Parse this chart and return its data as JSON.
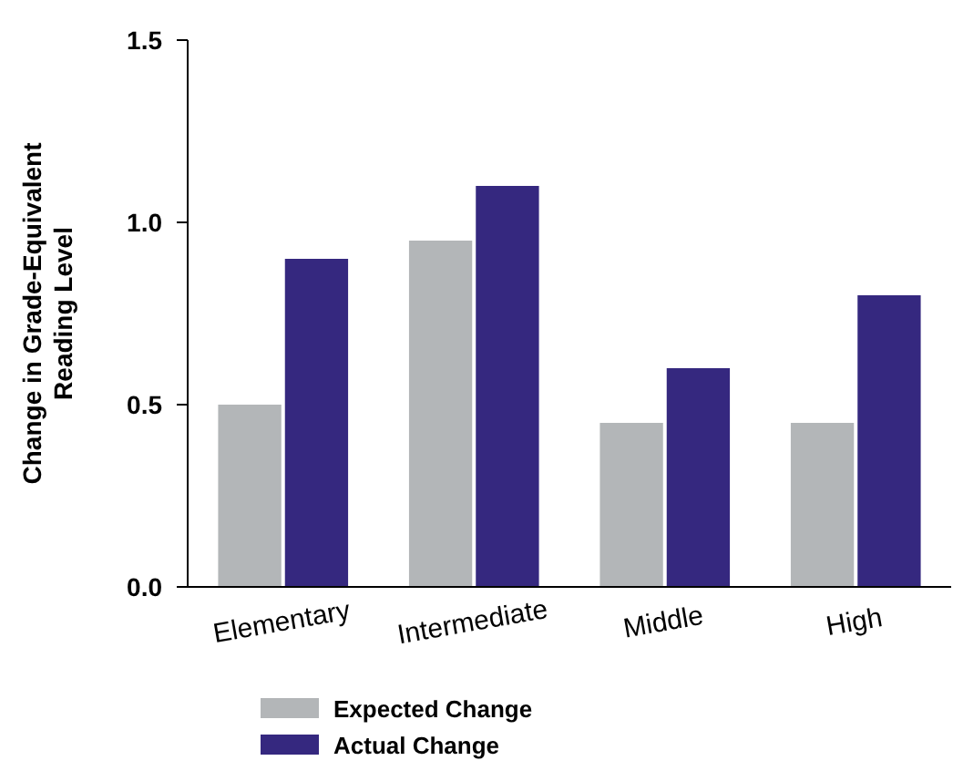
{
  "chart_data": {
    "type": "bar",
    "ylabel": "Change in Grade-Equivalent\nReading Level",
    "categories": [
      "Elementary",
      "Intermediate",
      "Middle",
      "High"
    ],
    "series": [
      {
        "name": "Expected Change",
        "color": "#b3b6b8",
        "values": [
          0.5,
          0.95,
          0.45,
          0.45
        ]
      },
      {
        "name": "Actual Change",
        "color": "#35287f",
        "values": [
          0.9,
          1.1,
          0.6,
          0.8
        ]
      }
    ],
    "ylim": [
      0,
      1.5
    ],
    "yticks": [
      {
        "value": 0,
        "label": "0.0"
      },
      0.5,
      {
        "value": 1,
        "label": "1.0"
      },
      1.5
    ],
    "grid": false,
    "legend": "bottom left"
  }
}
